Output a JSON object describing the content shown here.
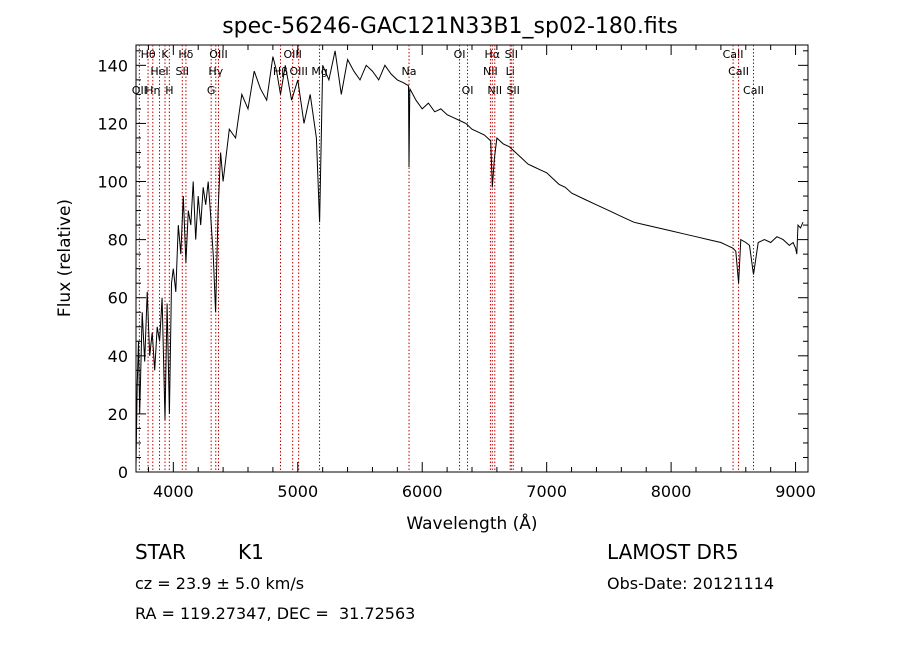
{
  "chart_data": {
    "type": "line",
    "title": "spec-56246-GAC121N33B1_sp02-180.fits",
    "xlabel": "Wavelength (Å)",
    "ylabel": "Flux (relative)",
    "xlim": [
      3700,
      9100
    ],
    "ylim": [
      0,
      147
    ],
    "xticks": [
      4000,
      5000,
      6000,
      7000,
      8000,
      9000
    ],
    "yticks": [
      0,
      20,
      40,
      60,
      80,
      100,
      120,
      140
    ],
    "line_color": "#000000",
    "marker_color": "#c00000",
    "spectrum": {
      "x": [
        3700,
        3710,
        3720,
        3730,
        3750,
        3770,
        3790,
        3810,
        3830,
        3850,
        3870,
        3890,
        3910,
        3933,
        3950,
        3968,
        3985,
        4000,
        4020,
        4040,
        4060,
        4080,
        4101,
        4120,
        4140,
        4160,
        4180,
        4200,
        4220,
        4240,
        4260,
        4280,
        4300,
        4320,
        4340,
        4360,
        4380,
        4400,
        4450,
        4500,
        4550,
        4600,
        4650,
        4700,
        4750,
        4800,
        4830,
        4861,
        4900,
        4950,
        5000,
        5050,
        5100,
        5150,
        5175,
        5200,
        5250,
        5300,
        5350,
        5400,
        5450,
        5500,
        5550,
        5600,
        5650,
        5700,
        5750,
        5800,
        5850,
        5890,
        5894,
        5900,
        5950,
        6000,
        6050,
        6100,
        6150,
        6200,
        6250,
        6300,
        6350,
        6400,
        6450,
        6500,
        6550,
        6563,
        6580,
        6600,
        6650,
        6700,
        6750,
        6800,
        6850,
        6900,
        6950,
        7000,
        7050,
        7100,
        7150,
        7200,
        7300,
        7400,
        7500,
        7600,
        7700,
        7800,
        7900,
        8000,
        8100,
        8200,
        8300,
        8400,
        8450,
        8498,
        8520,
        8542,
        8560,
        8600,
        8630,
        8662,
        8700,
        8750,
        8800,
        8850,
        8900,
        8950,
        8980,
        9000,
        9010,
        9020,
        9040,
        9060
      ],
      "y": [
        2,
        30,
        45,
        20,
        55,
        38,
        62,
        40,
        48,
        35,
        50,
        45,
        60,
        18,
        58,
        20,
        65,
        70,
        62,
        85,
        75,
        95,
        72,
        90,
        85,
        100,
        80,
        95,
        85,
        98,
        92,
        100,
        88,
        75,
        55,
        90,
        110,
        100,
        118,
        115,
        130,
        125,
        138,
        132,
        128,
        143,
        138,
        130,
        140,
        128,
        135,
        120,
        130,
        115,
        86,
        140,
        135,
        145,
        130,
        142,
        138,
        135,
        140,
        138,
        135,
        140,
        137,
        135,
        134,
        133,
        105,
        132,
        128,
        125,
        127,
        124,
        125,
        123,
        122,
        121,
        120,
        118,
        117,
        116,
        114,
        98,
        108,
        115,
        113,
        112,
        110,
        108,
        106,
        105,
        104,
        103,
        101,
        99,
        98,
        96,
        94,
        92,
        90,
        88,
        86,
        85,
        84,
        83,
        82,
        81,
        80,
        79,
        78,
        77,
        76,
        65,
        80,
        79,
        78,
        68,
        79,
        80,
        79,
        81,
        80,
        78,
        79,
        77,
        75,
        85,
        84,
        86
      ]
    },
    "lines": [
      {
        "wl": 3727,
        "label": "OII",
        "row": 3
      },
      {
        "wl": 3797,
        "label": "Hθ",
        "row": 1
      },
      {
        "wl": 3835,
        "label": "Hη",
        "row": 3
      },
      {
        "wl": 3889,
        "label": "HeI",
        "row": 2
      },
      {
        "wl": 3933,
        "label": "K",
        "row": 1
      },
      {
        "wl": 3968,
        "label": "H",
        "row": 3
      },
      {
        "wl": 4072,
        "label": "SII",
        "row": 2
      },
      {
        "wl": 4101,
        "label": "Hδ",
        "row": 1
      },
      {
        "wl": 4304,
        "label": "G",
        "row": 3
      },
      {
        "wl": 4341,
        "label": "Hγ",
        "row": 2
      },
      {
        "wl": 4363,
        "label": "OIII",
        "row": 1
      },
      {
        "wl": 4861,
        "label": "Hβ",
        "row": 0
      },
      {
        "wl": 4959,
        "label": "OIII",
        "row": 1
      },
      {
        "wl": 5007,
        "label": "OIII",
        "row": 2
      },
      {
        "wl": 5175,
        "label": "Mg",
        "row": 0
      },
      {
        "wl": 5894,
        "label": "Na",
        "row": 2
      },
      {
        "wl": 6300,
        "label": "OI",
        "row": 1
      },
      {
        "wl": 6364,
        "label": "OI",
        "row": 3
      },
      {
        "wl": 6548,
        "label": "NII",
        "row": 2
      },
      {
        "wl": 6563,
        "label": "Hα",
        "row": 1
      },
      {
        "wl": 6583,
        "label": "NII",
        "row": 3
      },
      {
        "wl": 6707,
        "label": "Li",
        "row": 2
      },
      {
        "wl": 6716,
        "label": "SII",
        "row": 1
      },
      {
        "wl": 6731,
        "label": "SII",
        "row": 3
      },
      {
        "wl": 8498,
        "label": "CaII",
        "row": 1
      },
      {
        "wl": 8542,
        "label": "CaII",
        "row": 2
      },
      {
        "wl": 8662,
        "label": "CaII",
        "row": 3
      }
    ]
  },
  "info": {
    "class": "STAR",
    "subclass": "K1",
    "survey": "LAMOST DR5",
    "redshift": "cz = 23.9 ± 5.0 km/s",
    "obs_date": "Obs-Date: 20121114",
    "coords": "RA = 119.27347, DEC =  31.72563"
  }
}
